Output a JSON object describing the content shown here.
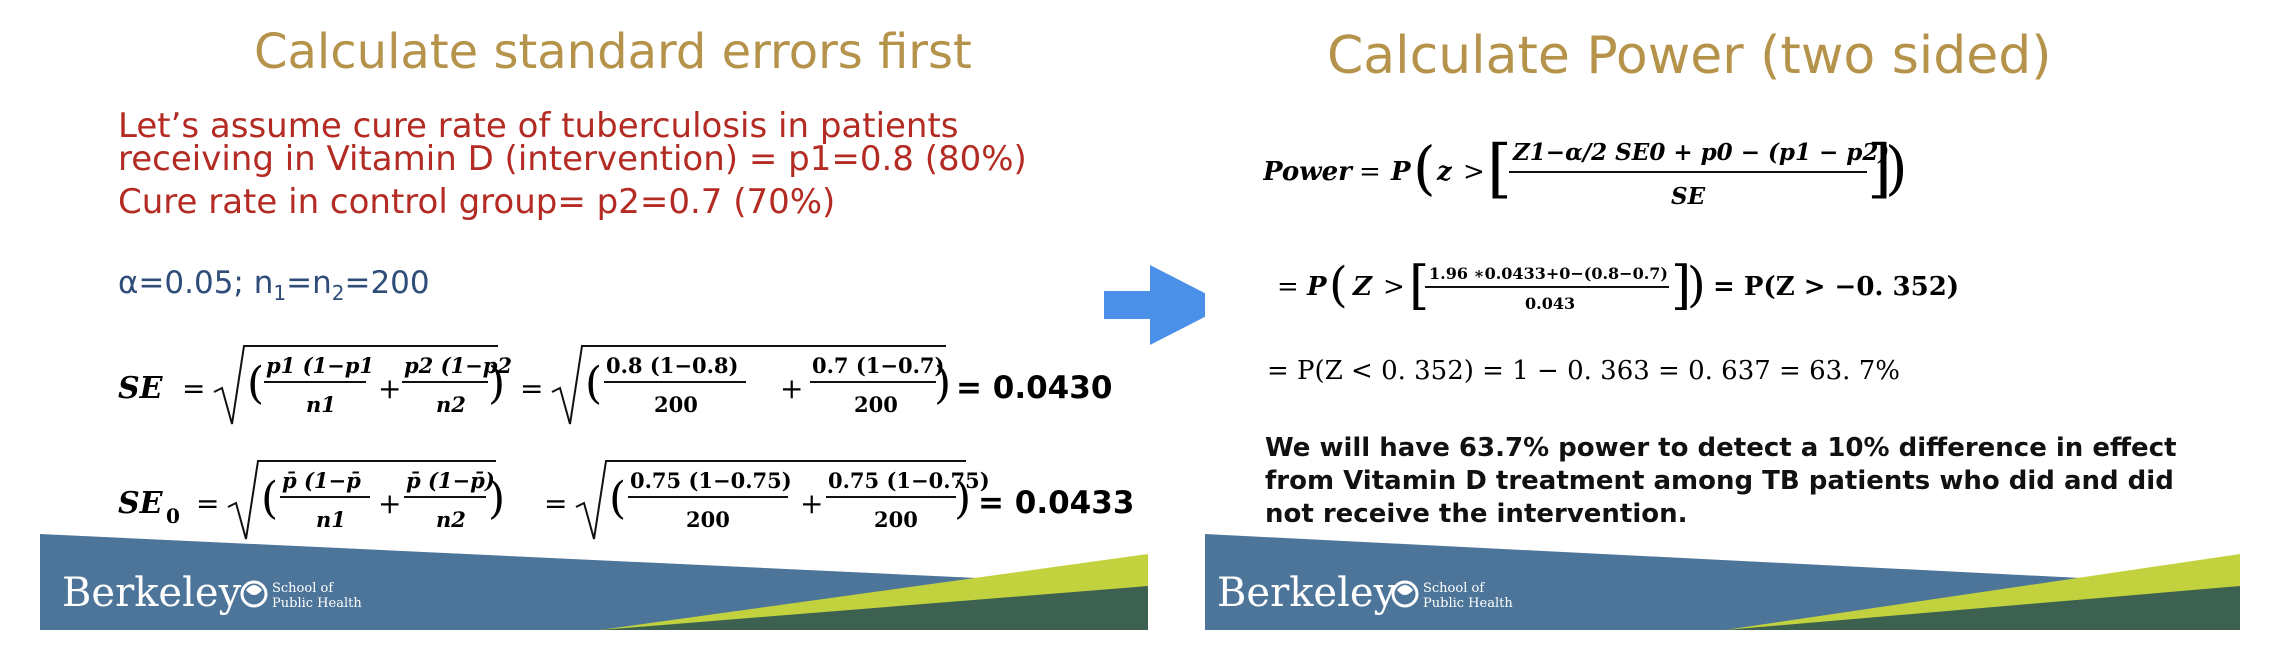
{
  "left_slide": {
    "title": "Calculate standard errors first",
    "assumption_line1": "Let’s assume cure rate of tuberculosis in patients",
    "assumption_line2": "receiving  in Vitamin D (intervention) = p1=0.8 (80%)",
    "assumption_line3": "Cure rate in control group= p2=0.7 (70%)",
    "params": "α=0.05; n1=n2=200",
    "se_label": "SE",
    "se_sym_num1": "p1 (1−p1",
    "se_sym_den1": "n1",
    "se_sym_num2": "p2 (1−p2",
    "se_sym_den2": "n2",
    "se_num_num1": "0.8 (1−0.8)",
    "se_num_den1": "200",
    "se_num_num2": "0.7 (1−0.7)",
    "se_num_den2": "200",
    "se_result": "= 0.0430 ;",
    "se0_label": "SE",
    "se0_sub": "0",
    "se0_sym_num1": "p̄ (1−p̄",
    "se0_sym_den1": "n1",
    "se0_sym_num2": "p̄ (1−p̄)",
    "se0_sym_den2": "n2",
    "se0_num_num1": "0.75 (1−0.75)",
    "se0_num_den1": "200",
    "se0_num_num2": "0.75 (1−0.75)",
    "se0_num_den2": "200",
    "se0_result": "= 0.0433;"
  },
  "right_slide": {
    "title": "Calculate Power (two sided)",
    "power_label": "Power",
    "power_numerator": "Z1−α/2 SE0 + p0 − (p1 − p2)",
    "power_denominator": "SE",
    "line2_numerator": "1.96 ∗0.0433+0−(0.8−0.7)",
    "line2_denominator": "0.043",
    "line2_result": "= P(Z > −0. 352)",
    "line3": "= P(Z < 0. 352) = 1 − 0. 363 = 0. 637 = 63. 7%",
    "conclusion": "We will have 63.7% power to detect a 10% difference in effect from Vitamin D treatment among TB patients who did and did not receive the intervention."
  },
  "footer": {
    "logo_text": "Berkeley",
    "school_line1": "School of",
    "school_line2": "Public Health"
  },
  "colors": {
    "title": "#b5934a",
    "assumption": "#b32b23",
    "params": "#2f4d79",
    "footer_blue": "#4d7599",
    "footer_green": "#c2d23e",
    "footer_dark_green": "#3d6150",
    "arrow": "#4a90e8"
  }
}
